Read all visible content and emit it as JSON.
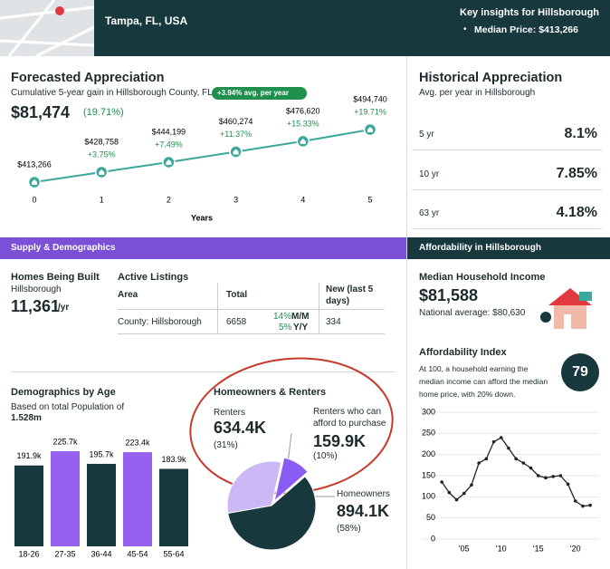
{
  "header": {
    "location": "Tampa, FL, USA",
    "insights_title": "Key insights for Hillsborough",
    "median_price": "Median Price: $413,266"
  },
  "forecast": {
    "title": "Forecasted Appreciation",
    "subtitle": "Cumulative 5-year gain in Hillsborough County, FL",
    "badge": "+3.94% avg. per year",
    "gain": "$81,474",
    "gain_pct": "(19.71%)",
    "chart_data": {
      "type": "line",
      "x": [
        0,
        1,
        2,
        3,
        4,
        5
      ],
      "values": [
        413266,
        428758,
        444199,
        460274,
        476620,
        494740
      ],
      "value_labels": [
        "$413,266",
        "$428,758",
        "$444,199",
        "$460,274",
        "$476,620",
        "$494,740"
      ],
      "change_labels": [
        null,
        "+3.75%",
        "+7.49%",
        "+11.37%",
        "+15.33%",
        "+19.71%"
      ],
      "xlim": [
        0,
        5
      ],
      "xticks": [
        0,
        1,
        2,
        3,
        4,
        5
      ],
      "xlabel": "Years",
      "color": "#3aa89a"
    }
  },
  "historical": {
    "title": "Historical Appreciation",
    "subtitle": "Avg. per year in Hillsborough",
    "rows": [
      [
        "5 yr",
        "8.1%"
      ],
      [
        "10 yr",
        "7.85%"
      ],
      [
        "63 yr",
        "4.18%"
      ]
    ]
  },
  "supply": {
    "section_title": "Supply & Demographics",
    "homes_title": "Homes Being Built",
    "homes_area": "Hillsborough",
    "homes_value": "11,361",
    "homes_unit": "/yr",
    "listings": {
      "title": "Active Listings",
      "headers": [
        "Area",
        "Total",
        "New (last 5 days)"
      ],
      "row": {
        "area": "County: Hillsborough",
        "total": "6658",
        "mm": "14%",
        "mm_label": "M/M",
        "yy": "5%",
        "yy_label": "Y/Y",
        "new": "334"
      }
    }
  },
  "demographics": {
    "title": "Demographics by Age",
    "subtitle": "Based on total Population of",
    "population": "1.528m",
    "chart_data": {
      "type": "bar",
      "categories": [
        "18-26",
        "27-35",
        "36-44",
        "45-54",
        "55-64"
      ],
      "values": [
        191.9,
        225.7,
        195.7,
        223.4,
        183.9
      ],
      "value_labels": [
        "191.9k",
        "225.7k",
        "195.7k",
        "223.4k",
        "183.9k"
      ],
      "colors": [
        "#17393d",
        "#9660f0",
        "#17393d",
        "#9660f0",
        "#17393d"
      ]
    }
  },
  "homeowners": {
    "title": "Homeowners & Renters",
    "chart_data": {
      "type": "pie",
      "categories": [
        "Renters",
        "Renters who can afford to purchase",
        "Homeowners"
      ],
      "values": [
        31,
        10,
        58
      ],
      "value_labels": [
        "(31%)",
        "(10%)",
        "(58%)"
      ],
      "counts": [
        "634.4K",
        "159.9K",
        "894.1K"
      ],
      "colors": [
        "#cbb8f4",
        "#8a5cf5",
        "#17393d"
      ]
    }
  },
  "affordability": {
    "section_title": "Affordability in Hillsborough",
    "income_title": "Median Household Income",
    "income": "$81,588",
    "national": "National average: $80,630",
    "index_title": "Affordability Index",
    "index_value": "79",
    "index_desc": "At 100, a household earning the median income can afford the median home price, with 20% down.",
    "chart_data": {
      "type": "line",
      "x": [
        2002,
        2003,
        2004,
        2005,
        2006,
        2007,
        2008,
        2009,
        2010,
        2011,
        2012,
        2013,
        2014,
        2015,
        2016,
        2017,
        2018,
        2019,
        2020,
        2021,
        2022
      ],
      "values": [
        135,
        110,
        93,
        108,
        128,
        180,
        190,
        230,
        240,
        215,
        190,
        180,
        168,
        150,
        145,
        148,
        150,
        130,
        90,
        78,
        80
      ],
      "xlim": [
        1999.3,
        2023.2
      ],
      "ylim": [
        0,
        300
      ],
      "yticks": [
        0,
        50,
        100,
        150,
        200,
        250,
        300
      ],
      "xticks": [
        {
          "value": 2005,
          "label": "'05"
        },
        {
          "value": 2010,
          "label": "'10"
        },
        {
          "value": 2015,
          "label": "'15"
        },
        {
          "value": 2020,
          "label": "'20"
        }
      ],
      "grid": true,
      "color": "#222222"
    }
  }
}
